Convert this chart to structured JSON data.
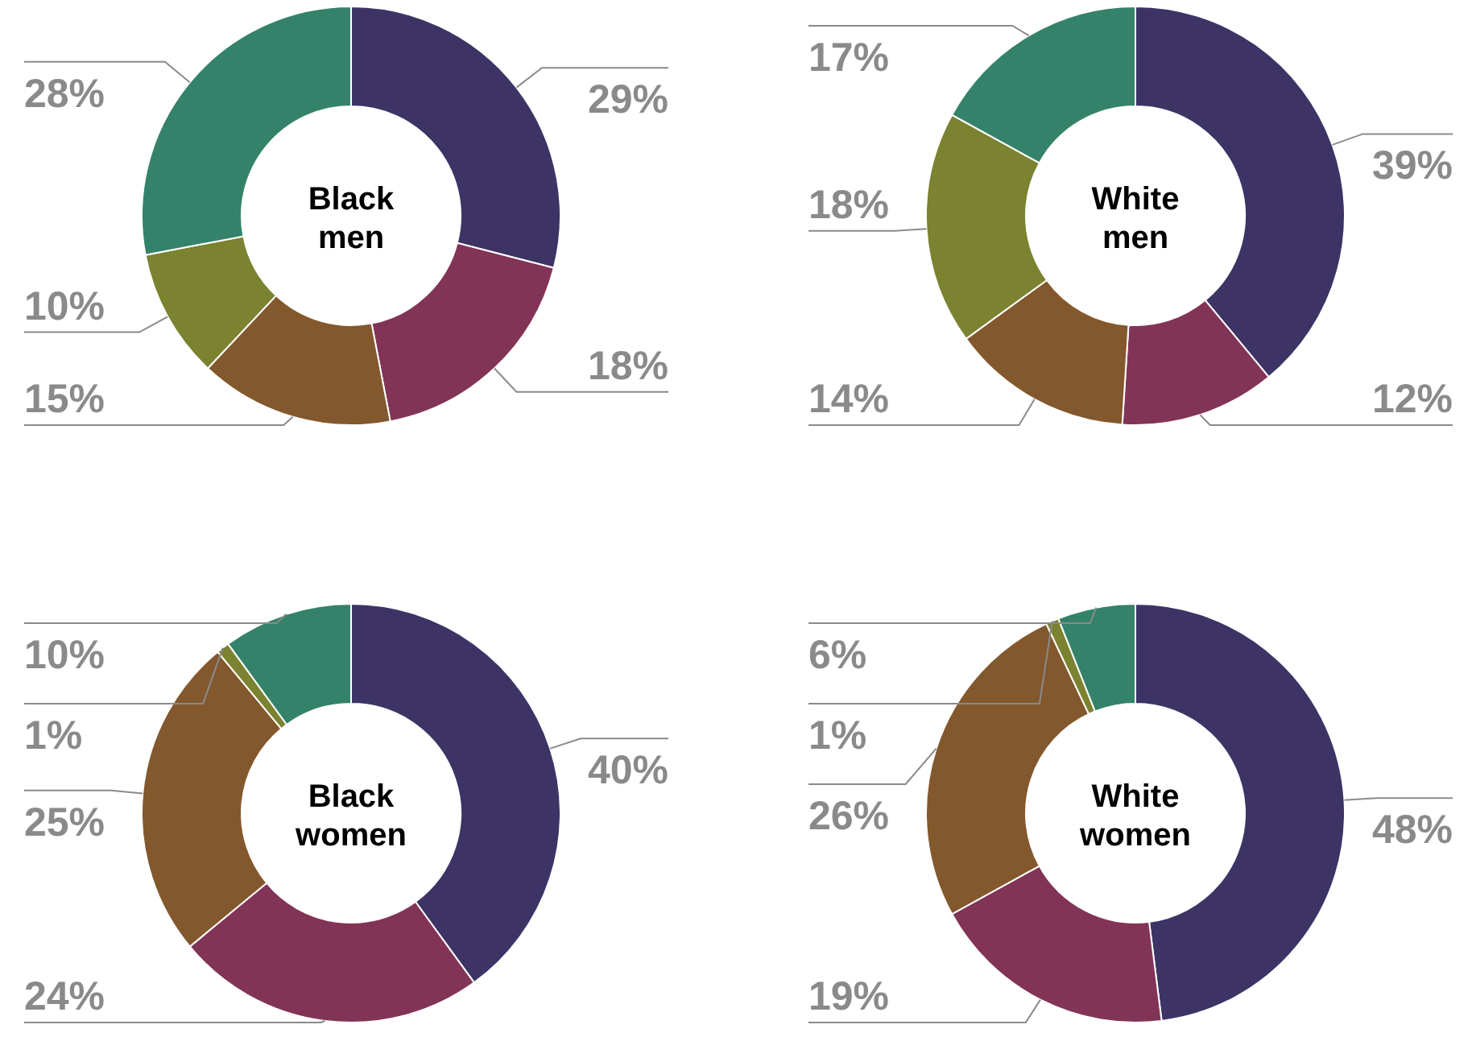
{
  "chart_data": [
    {
      "type": "donut",
      "title": "Black men",
      "categories": [
        null,
        null,
        null,
        null,
        null
      ],
      "values": [
        29,
        18,
        15,
        10,
        28
      ],
      "value_labels": [
        "29%",
        "18%",
        "15%",
        "10%",
        "28%"
      ],
      "colors": [
        "#3d3465",
        "#823457",
        "#83582d",
        "#7b8230",
        "#35826a"
      ]
    },
    {
      "type": "donut",
      "title": "White men",
      "categories": [
        null,
        null,
        null,
        null,
        null
      ],
      "values": [
        39,
        12,
        14,
        18,
        17
      ],
      "value_labels": [
        "39%",
        "12%",
        "14%",
        "18%",
        "17%"
      ],
      "colors": [
        "#3d3465",
        "#823457",
        "#83582d",
        "#7b8230",
        "#35826a"
      ]
    },
    {
      "type": "donut",
      "title": "Black women",
      "categories": [
        null,
        null,
        null,
        null,
        null
      ],
      "values": [
        40,
        24,
        25,
        1,
        10
      ],
      "value_labels": [
        "40%",
        "24%",
        "25%",
        "1%",
        "10%"
      ],
      "colors": [
        "#3d3465",
        "#823457",
        "#83582d",
        "#7b8230",
        "#35826a"
      ]
    },
    {
      "type": "donut",
      "title": "White women",
      "categories": [
        null,
        null,
        null,
        null,
        null
      ],
      "values": [
        48,
        19,
        26,
        1,
        6
      ],
      "value_labels": [
        "48%",
        "19%",
        "26%",
        "1%",
        "6%"
      ],
      "colors": [
        "#3d3465",
        "#823457",
        "#83582d",
        "#7b8230",
        "#35826a"
      ]
    }
  ]
}
